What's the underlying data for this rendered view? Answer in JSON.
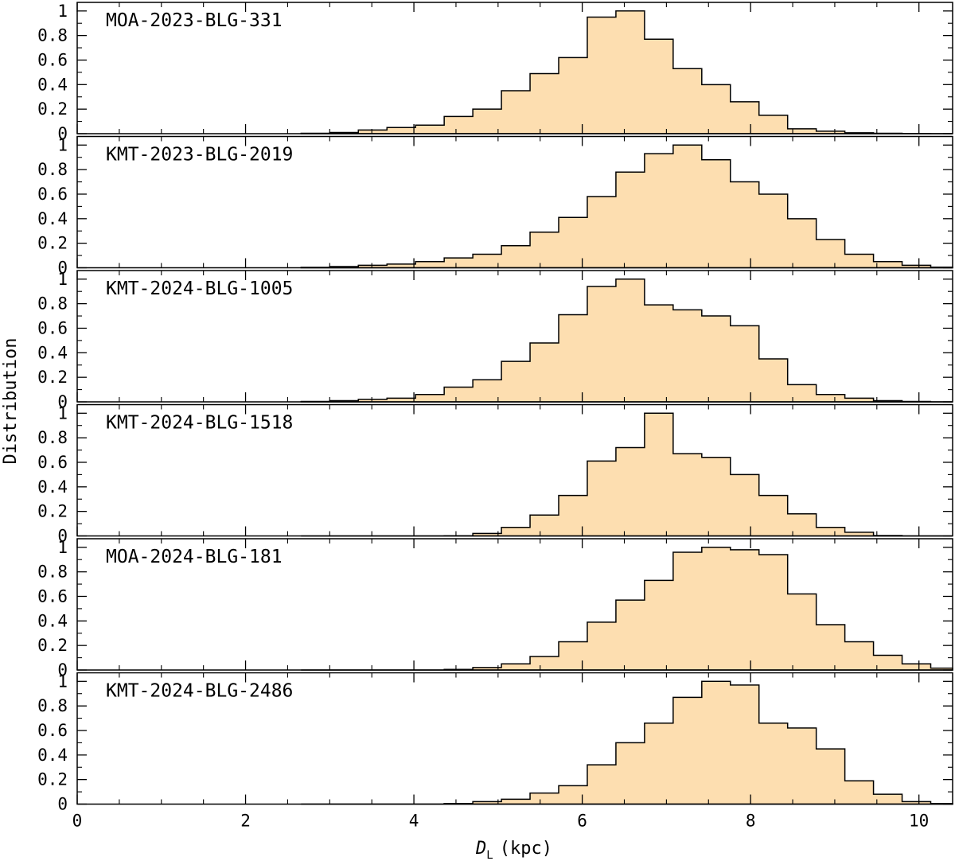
{
  "chart_data": {
    "type": "histogram",
    "xlabel_symbol": "D",
    "xlabel_subscript": "L",
    "xlabel_unit": "(kpc)",
    "ylabel": "Distribution",
    "xlim": [
      0,
      10.4
    ],
    "ylim": [
      0,
      1.07
    ],
    "xticks": [
      0,
      2,
      4,
      6,
      8,
      10
    ],
    "xtick_labels": [
      "0",
      "2",
      "4",
      "6",
      "8",
      "10"
    ],
    "yticks": [
      0,
      0.2,
      0.4,
      0.6,
      0.8,
      1
    ],
    "ytick_labels": [
      "0",
      "0.2",
      "0.4",
      "0.6",
      "0.8",
      "1"
    ],
    "bin_edges": [
      2.66,
      3.0,
      3.34,
      3.68,
      4.02,
      4.36,
      4.7,
      5.04,
      5.38,
      5.72,
      6.06,
      6.4,
      6.74,
      7.08,
      7.42,
      7.76,
      8.1,
      8.44,
      8.78,
      9.12,
      9.46,
      9.8,
      10.14,
      10.4
    ],
    "panels": [
      {
        "name": "MOA-2023-BLG-331",
        "values": [
          0.003,
          0.01,
          0.03,
          0.05,
          0.07,
          0.14,
          0.2,
          0.35,
          0.49,
          0.62,
          0.95,
          1.0,
          0.77,
          0.53,
          0.4,
          0.26,
          0.15,
          0.04,
          0.02,
          0.007,
          0.003,
          0.001,
          0.0
        ]
      },
      {
        "name": "KMT-2023-BLG-2019",
        "values": [
          0.003,
          0.01,
          0.02,
          0.03,
          0.05,
          0.08,
          0.11,
          0.18,
          0.29,
          0.41,
          0.58,
          0.78,
          0.93,
          1.0,
          0.88,
          0.7,
          0.6,
          0.4,
          0.23,
          0.11,
          0.05,
          0.02,
          0.005
        ]
      },
      {
        "name": "KMT-2024-BLG-1005",
        "values": [
          0.003,
          0.01,
          0.02,
          0.03,
          0.06,
          0.12,
          0.18,
          0.33,
          0.48,
          0.71,
          0.94,
          1.0,
          0.79,
          0.75,
          0.7,
          0.62,
          0.35,
          0.14,
          0.06,
          0.03,
          0.01,
          0.003,
          0.0
        ]
      },
      {
        "name": "KMT-2024-BLG-1518",
        "values": [
          0.0,
          0.0,
          0.0,
          0.0,
          0.0,
          0.002,
          0.02,
          0.07,
          0.17,
          0.33,
          0.61,
          0.72,
          1.0,
          0.67,
          0.64,
          0.5,
          0.33,
          0.18,
          0.07,
          0.03,
          0.003,
          0.0,
          0.0
        ]
      },
      {
        "name": "MOA-2024-BLG-181",
        "values": [
          0.0,
          0.0,
          0.0,
          0.0,
          0.0,
          0.005,
          0.02,
          0.05,
          0.11,
          0.23,
          0.39,
          0.57,
          0.73,
          0.96,
          1.0,
          0.98,
          0.94,
          0.62,
          0.37,
          0.23,
          0.12,
          0.05,
          0.015
        ]
      },
      {
        "name": "KMT-2024-BLG-2486",
        "values": [
          0.0,
          0.0,
          0.0,
          0.0,
          0.0,
          0.005,
          0.02,
          0.04,
          0.09,
          0.15,
          0.32,
          0.5,
          0.66,
          0.87,
          1.0,
          0.97,
          0.66,
          0.62,
          0.45,
          0.19,
          0.08,
          0.02,
          0.005
        ]
      }
    ],
    "fill_color": "#fddeb0",
    "edge_color": "#000000"
  }
}
